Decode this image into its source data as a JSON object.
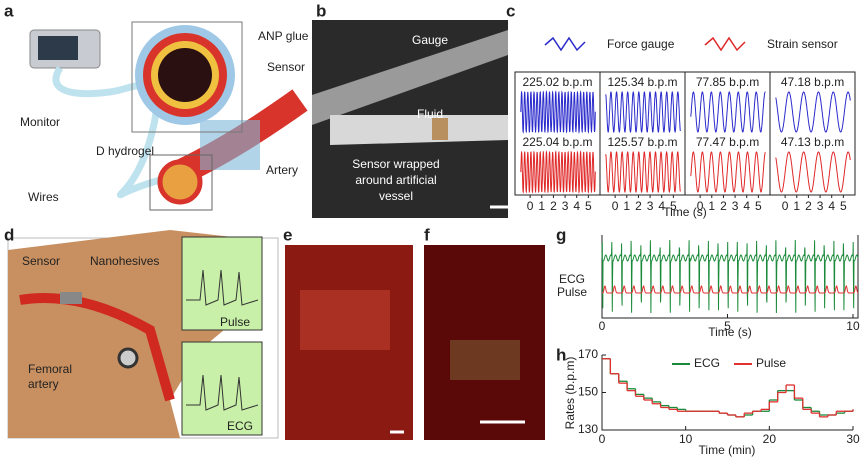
{
  "figure": {
    "panel_letters": [
      "a",
      "b",
      "c",
      "d",
      "e",
      "f",
      "g",
      "h"
    ],
    "a": {
      "labels": [
        "ANP glue",
        "Sensor",
        "Monitor",
        "D hydrogel",
        "Artery",
        "Wires"
      ]
    },
    "b": {
      "labels": [
        "Gauge",
        "Fluid"
      ],
      "note": [
        "Sensor wrapped",
        "around artificial",
        "vessel"
      ]
    },
    "d": {
      "labels": [
        "Sensor",
        "Nanohesives",
        "Pulse",
        "ECG"
      ],
      "artery": [
        "Femoral",
        "artery"
      ]
    }
  },
  "chart_data": [
    {
      "type": "waveform",
      "series": [
        {
          "name": "Force gauge",
          "color": "#2a2acc",
          "values": [
            225.02,
            125.34,
            77.85,
            47.18
          ],
          "value_labels": [
            "225.02 b.p.m",
            "125.34 b.p.m",
            "77.85 b.p.m",
            "47.18 b.p.m"
          ]
        },
        {
          "name": "Strain sensor",
          "color": "#e02828",
          "values": [
            225.04,
            125.57,
            77.47,
            47.13
          ],
          "value_labels": [
            "225.04 b.p.m",
            "125.57 b.p.m",
            "77.47 b.p.m",
            "47.13 b.p.m"
          ]
        }
      ],
      "xlim": [
        -1.3,
        6
      ],
      "xticks": [
        0,
        1,
        2,
        3,
        4,
        5
      ],
      "xlabel": "Time (s)"
    },
    {
      "type": "ecg",
      "series": [
        {
          "name": "ECG",
          "color": "#1a8a3a",
          "values": [
            156
          ]
        },
        {
          "name": "Pulse",
          "color": "#e03030",
          "values": [
            156
          ]
        }
      ],
      "xlim": [
        0,
        10.2
      ],
      "xticks": [
        0,
        5,
        10
      ],
      "xlabel": "Time (s)"
    },
    {
      "type": "step",
      "x": [
        0,
        1,
        2,
        3,
        4,
        5,
        6,
        7,
        8,
        9,
        10,
        11,
        12,
        13,
        14,
        15,
        16,
        17,
        18,
        19,
        20,
        21,
        22,
        23,
        24,
        25,
        26,
        27,
        28,
        29,
        30
      ],
      "series": [
        {
          "name": "ECG",
          "color": "#1a8a3a",
          "values": [
            168,
            160,
            156,
            152,
            149,
            147,
            145,
            143,
            142,
            141,
            140,
            140,
            140,
            140,
            139,
            138,
            137,
            138,
            140,
            140,
            146,
            151,
            151,
            146,
            142,
            140,
            138,
            138,
            139,
            140,
            141
          ]
        },
        {
          "name": "Pulse",
          "color": "#e03030",
          "values": [
            168,
            160,
            155,
            151,
            148,
            146,
            144,
            142,
            141,
            140,
            140,
            140,
            140,
            140,
            139,
            138,
            137,
            139,
            140,
            141,
            145,
            150,
            154,
            147,
            141,
            139,
            137,
            138,
            140,
            140,
            141
          ]
        }
      ],
      "xlim": [
        0,
        30
      ],
      "ylim": [
        130,
        170
      ],
      "xticks": [
        0,
        10,
        20,
        30
      ],
      "yticks": [
        130,
        150,
        170
      ],
      "xlabel": "Time (min)",
      "ylabel": "Rates (b.p.m)"
    }
  ]
}
